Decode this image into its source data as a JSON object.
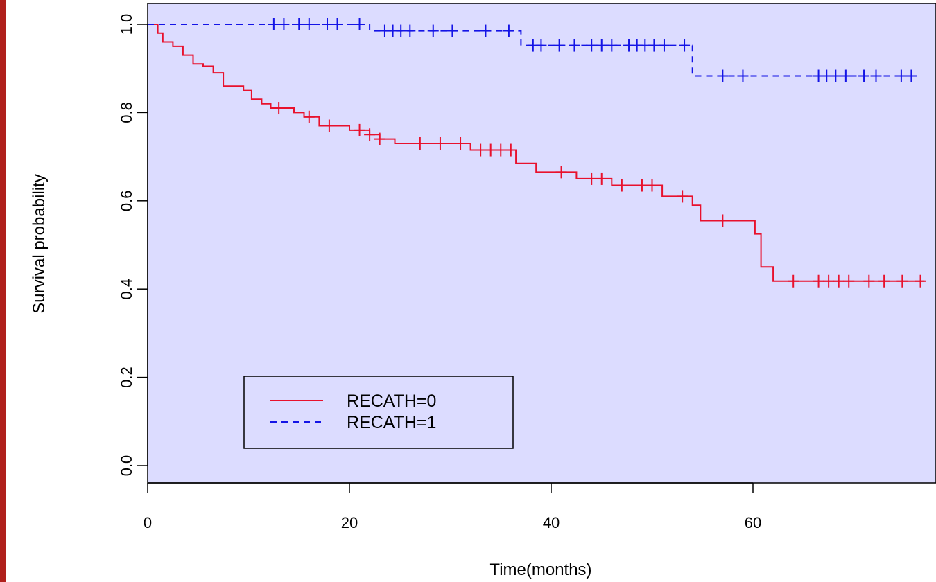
{
  "chart_data": {
    "type": "line",
    "title": "",
    "xlabel": "Time(months)",
    "ylabel": "Survival probability",
    "xlim": [
      0,
      78
    ],
    "ylim": [
      0,
      1.0
    ],
    "xticks": [
      0,
      20,
      40,
      60
    ],
    "yticks": [
      0.0,
      0.2,
      0.4,
      0.6,
      0.8,
      1.0
    ],
    "ytick_labels": [
      "0.0",
      "0.2",
      "0.4",
      "0.6",
      "0.8",
      "1.0"
    ],
    "xtick_labels": [
      "0",
      "20",
      "40",
      "60"
    ],
    "grid": false,
    "legend_position": "bottom-left",
    "plot_background": "#dcdcff",
    "series": [
      {
        "name": "RECATH=0",
        "color": "#e8112d",
        "line_style": "solid",
        "steps": [
          [
            0,
            1.0
          ],
          [
            1,
            0.98
          ],
          [
            1.5,
            0.96
          ],
          [
            2.5,
            0.95
          ],
          [
            3.5,
            0.93
          ],
          [
            4.5,
            0.91
          ],
          [
            5.5,
            0.905
          ],
          [
            6.5,
            0.89
          ],
          [
            7.5,
            0.86
          ],
          [
            9.5,
            0.85
          ],
          [
            10.3,
            0.83
          ],
          [
            11.3,
            0.82
          ],
          [
            12.2,
            0.81
          ],
          [
            14.5,
            0.8
          ],
          [
            15.5,
            0.79
          ],
          [
            17,
            0.77
          ],
          [
            20,
            0.76
          ],
          [
            22,
            0.75
          ],
          [
            23,
            0.74
          ],
          [
            24.5,
            0.73
          ],
          [
            32,
            0.715
          ],
          [
            36.5,
            0.685
          ],
          [
            38.5,
            0.665
          ],
          [
            42.5,
            0.65
          ],
          [
            46,
            0.635
          ],
          [
            51,
            0.61
          ],
          [
            54,
            0.59
          ],
          [
            54.8,
            0.555
          ],
          [
            60.2,
            0.525
          ],
          [
            60.8,
            0.45
          ],
          [
            62,
            0.418
          ],
          [
            77,
            0.418
          ]
        ],
        "censored": [
          [
            13,
            0.81
          ],
          [
            16,
            0.79
          ],
          [
            18,
            0.77
          ],
          [
            21,
            0.76
          ],
          [
            22,
            0.75
          ],
          [
            23,
            0.74
          ],
          [
            27,
            0.73
          ],
          [
            29,
            0.73
          ],
          [
            31,
            0.73
          ],
          [
            33,
            0.715
          ],
          [
            34,
            0.715
          ],
          [
            35,
            0.715
          ],
          [
            36,
            0.715
          ],
          [
            41,
            0.665
          ],
          [
            44,
            0.65
          ],
          [
            45,
            0.65
          ],
          [
            47,
            0.635
          ],
          [
            49,
            0.635
          ],
          [
            50,
            0.635
          ],
          [
            53,
            0.61
          ],
          [
            57,
            0.555
          ],
          [
            64,
            0.418
          ],
          [
            66.5,
            0.418
          ],
          [
            67.5,
            0.418
          ],
          [
            68.5,
            0.418
          ],
          [
            69.5,
            0.418
          ],
          [
            71.5,
            0.418
          ],
          [
            73,
            0.418
          ],
          [
            74.8,
            0.418
          ],
          [
            76.6,
            0.418
          ]
        ]
      },
      {
        "name": "RECATH=1",
        "color": "#1414e6",
        "line_style": "dashed",
        "steps": [
          [
            0,
            1.0
          ],
          [
            22,
            0.985
          ],
          [
            37,
            0.952
          ],
          [
            54,
            0.883
          ],
          [
            76,
            0.883
          ]
        ],
        "censored": [
          [
            12.5,
            1.0
          ],
          [
            13.5,
            1.0
          ],
          [
            15,
            1.0
          ],
          [
            16,
            1.0
          ],
          [
            17.8,
            1.0
          ],
          [
            18.8,
            1.0
          ],
          [
            21,
            1.0
          ],
          [
            23.5,
            0.985
          ],
          [
            24.3,
            0.985
          ],
          [
            25.1,
            0.985
          ],
          [
            26,
            0.985
          ],
          [
            28.3,
            0.985
          ],
          [
            30.2,
            0.985
          ],
          [
            33.5,
            0.985
          ],
          [
            35.8,
            0.985
          ],
          [
            38.2,
            0.952
          ],
          [
            39,
            0.952
          ],
          [
            40.8,
            0.952
          ],
          [
            42.3,
            0.952
          ],
          [
            44,
            0.952
          ],
          [
            45,
            0.952
          ],
          [
            46,
            0.952
          ],
          [
            47.7,
            0.952
          ],
          [
            48.5,
            0.952
          ],
          [
            49.3,
            0.952
          ],
          [
            50.2,
            0.952
          ],
          [
            51.2,
            0.952
          ],
          [
            53.2,
            0.952
          ],
          [
            57,
            0.883
          ],
          [
            59,
            0.883
          ],
          [
            66.5,
            0.883
          ],
          [
            67.3,
            0.883
          ],
          [
            68.2,
            0.883
          ],
          [
            69.2,
            0.883
          ],
          [
            71,
            0.883
          ],
          [
            72.2,
            0.883
          ],
          [
            74.7,
            0.883
          ],
          [
            75.7,
            0.883
          ]
        ]
      }
    ]
  }
}
